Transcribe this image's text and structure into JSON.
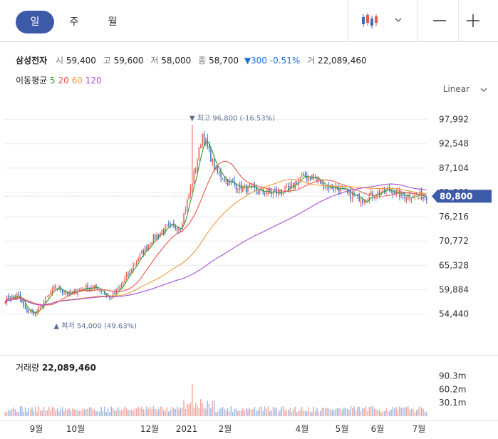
{
  "tabs": [
    {
      "label": "일",
      "active": true
    },
    {
      "label": "주",
      "active": false
    },
    {
      "label": "월",
      "active": false
    }
  ],
  "toolbar_icons": [
    "candlestick-icon",
    "chevron-down-icon",
    "zoom-out-icon",
    "zoom-in-icon"
  ],
  "quote": {
    "name": "삼성전자",
    "open_label": "시",
    "open": "59,400",
    "high_label": "고",
    "high": "59,600",
    "low_label": "저",
    "low": "58,000",
    "close_label": "종",
    "close": "58,700",
    "change": "▼300",
    "change_pct": "-0.51%",
    "volume_label": "거",
    "volume": "22,089,460"
  },
  "moving_average": {
    "label": "이동평균",
    "periods": [
      {
        "period": "5",
        "color": "#2ca02c"
      },
      {
        "period": "20",
        "color": "#e8574a"
      },
      {
        "period": "60",
        "color": "#f59a3c"
      },
      {
        "period": "120",
        "color": "#a64fd8"
      }
    ]
  },
  "scale_mode": "Linear",
  "colors": {
    "up": "#e8574a",
    "down": "#3b6bbf",
    "accent": "#3d5aa8",
    "current": "#3d5aa8"
  },
  "chart_data": {
    "type": "candlestick",
    "y_ticks": [
      "97,992",
      "92,548",
      "87,104",
      "81,660",
      "76,216",
      "70,772",
      "65,328",
      "59,884",
      "54,440"
    ],
    "ylim": [
      51500,
      100800
    ],
    "x_ticks": [
      "9월",
      "10월",
      "12월",
      "2021",
      "2월",
      "4월",
      "5월",
      "6월",
      "7월"
    ],
    "current_price_label": "80,800",
    "annotations": {
      "high": {
        "text": "최고 96,800 (-16.53%)",
        "value": 96800
      },
      "low": {
        "text": "최저 54,000 (49.63%)",
        "value": 54000
      }
    },
    "price_keypoints": [
      [
        0,
        57800
      ],
      [
        8,
        58500
      ],
      [
        12,
        55200
      ],
      [
        18,
        54600
      ],
      [
        25,
        58200
      ],
      [
        30,
        60500
      ],
      [
        38,
        58800
      ],
      [
        46,
        60300
      ],
      [
        55,
        60300
      ],
      [
        62,
        57800
      ],
      [
        68,
        60300
      ],
      [
        78,
        66500
      ],
      [
        88,
        71500
      ],
      [
        96,
        73800
      ],
      [
        104,
        74000
      ],
      [
        110,
        82500
      ],
      [
        114,
        89000
      ],
      [
        117,
        94800
      ],
      [
        120,
        91500
      ],
      [
        125,
        86500
      ],
      [
        132,
        84000
      ],
      [
        140,
        82800
      ],
      [
        150,
        82000
      ],
      [
        160,
        81500
      ],
      [
        168,
        82000
      ],
      [
        175,
        85000
      ],
      [
        182,
        85200
      ],
      [
        190,
        83200
      ],
      [
        198,
        82500
      ],
      [
        205,
        81000
      ],
      [
        212,
        80200
      ],
      [
        220,
        81500
      ],
      [
        228,
        82200
      ],
      [
        236,
        81000
      ],
      [
        245,
        81000
      ],
      [
        250,
        80800
      ]
    ],
    "spikes": [
      [
        111,
        96800
      ],
      [
        17,
        54000
      ]
    ],
    "volume": {
      "title": "거래량",
      "value": "22,089,460",
      "y_ticks": [
        "90.3m",
        "60.2m",
        "30.1m"
      ],
      "max": 99000000,
      "spike_index": 111,
      "spike_value": 72000000
    }
  }
}
